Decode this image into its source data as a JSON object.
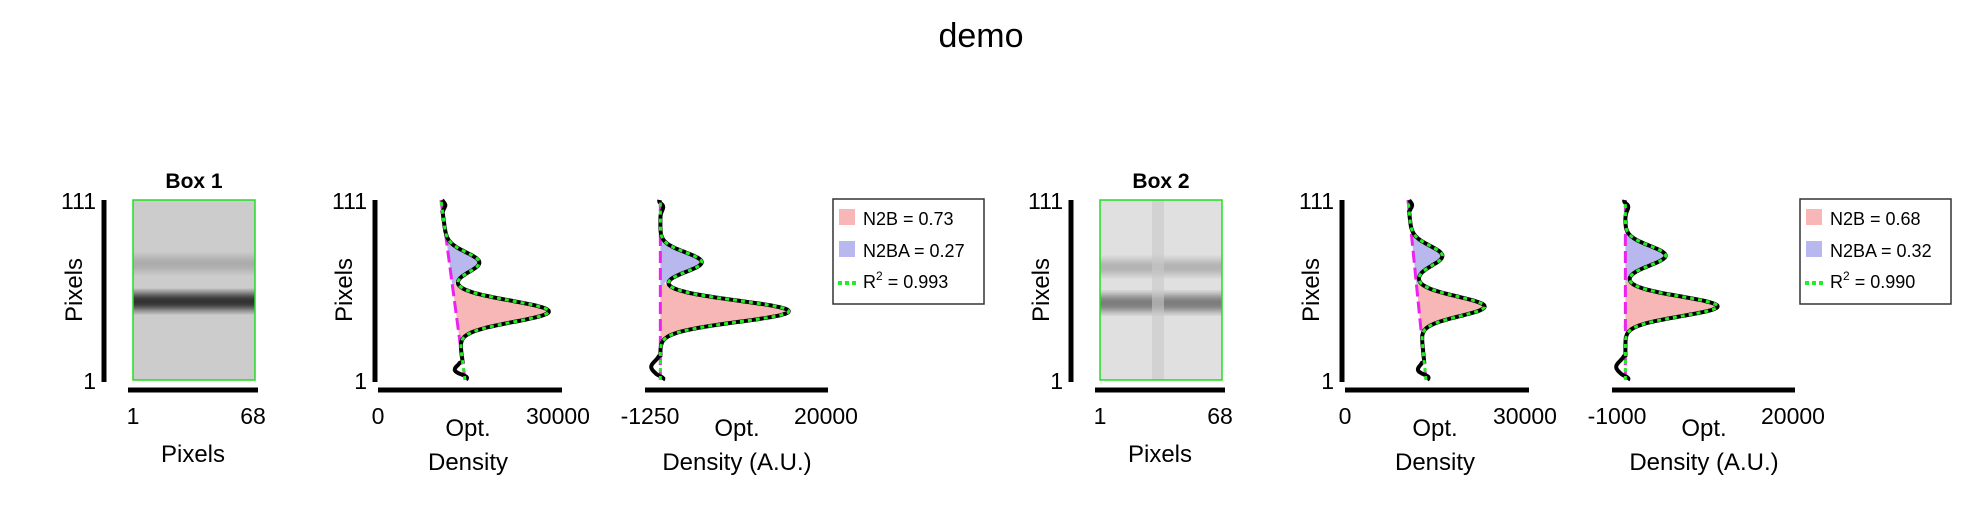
{
  "title": "demo",
  "colors": {
    "n2b_fill": "#f7b7b7",
    "n2ba_fill": "#b8b8ee",
    "fit": "#22ee22",
    "baseline": "#ee22ee",
    "profile": "#000000",
    "box_border": "#22dd22"
  },
  "panels": [
    {
      "box": {
        "title": "Box 1",
        "ylabel": "Pixels",
        "xlabel": "Pixels",
        "xtick_left": "1",
        "xtick_right": "68",
        "ytick_top": "111",
        "ytick_bottom": "1",
        "band_main_y": 49,
        "band_faint_y": 72,
        "background_gray": 0.8
      },
      "density": {
        "xlabel_line1": "Opt.",
        "xlabel_line2": "Density",
        "ylabel": "Pixels",
        "xtick_left": "0",
        "xtick_right": "30000",
        "ytick_top": "111",
        "ytick_bottom": "1"
      },
      "adjusted": {
        "xlabel_line1": "Opt.",
        "xlabel_line2": "Density (A.U.)",
        "xtick_left": "-1250",
        "xtick_right": "20000"
      },
      "legend": {
        "n2b": "N2B = 0.73",
        "n2ba": "N2BA = 0.27",
        "r2_prefix": "R",
        "r2_sup": "2",
        "r2_value": " = 0.993"
      }
    },
    {
      "box": {
        "title": "Box 2",
        "ylabel": "Pixels",
        "xlabel": "Pixels",
        "xtick_left": "1",
        "xtick_right": "68",
        "ytick_top": "111",
        "ytick_bottom": "1",
        "band_main_y": 48,
        "band_faint_y": 70,
        "background_gray": 0.88
      },
      "density": {
        "xlabel_line1": "Opt.",
        "xlabel_line2": "Density",
        "ylabel": "Pixels",
        "xtick_left": "0",
        "xtick_right": "30000",
        "ytick_top": "111",
        "ytick_bottom": "1"
      },
      "adjusted": {
        "xlabel_line1": "Opt.",
        "xlabel_line2": "Density (A.U.)",
        "xtick_left": "-1000",
        "xtick_right": "20000"
      },
      "legend": {
        "n2b": "N2B = 0.68",
        "n2ba": "N2BA = 0.32",
        "r2_prefix": "R",
        "r2_sup": "2",
        "r2_value": " = 0.990"
      }
    }
  ],
  "chart_data": [
    {
      "type": "line",
      "title": "Box 1",
      "xlabel": "Opt. Density",
      "ylabel": "Pixels",
      "xlim": [
        0,
        30000
      ],
      "ylim": [
        1,
        111
      ],
      "baseline": {
        "top_x": 10500,
        "bottom_x": 14500
      },
      "peaks": [
        {
          "name": "N2B",
          "y": 43,
          "amplitude": 15500,
          "width": 6.5
        },
        {
          "name": "N2BA",
          "y": 73,
          "amplitude": 5000,
          "width": 6.0
        }
      ],
      "fractions": {
        "N2B": 0.73,
        "N2BA": 0.27
      },
      "r2": 0.993
    },
    {
      "type": "line",
      "title": "Box 1",
      "xlabel": "Opt. Density (A.U.)",
      "ylabel": "Pixels",
      "xlim": [
        -1250,
        20000
      ],
      "ylim": [
        1,
        111
      ],
      "peaks": [
        {
          "name": "N2B",
          "y": 43,
          "amplitude": 15500,
          "width": 6.5
        },
        {
          "name": "N2BA",
          "y": 73,
          "amplitude": 5000,
          "width": 6.0
        }
      ]
    },
    {
      "type": "line",
      "title": "Box 2",
      "xlabel": "Opt. Density",
      "ylabel": "Pixels",
      "xlim": [
        0,
        30000
      ],
      "ylim": [
        1,
        111
      ],
      "baseline": {
        "top_x": 10500,
        "bottom_x": 13500
      },
      "peaks": [
        {
          "name": "N2B",
          "y": 46,
          "amplitude": 11000,
          "width": 6.0
        },
        {
          "name": "N2BA",
          "y": 77,
          "amplitude": 4800,
          "width": 6.0
        }
      ],
      "fractions": {
        "N2B": 0.68,
        "N2BA": 0.32
      },
      "r2": 0.99
    },
    {
      "type": "line",
      "title": "Box 2",
      "xlabel": "Opt. Density (A.U.)",
      "ylabel": "Pixels",
      "xlim": [
        -1000,
        20000
      ],
      "ylim": [
        1,
        111
      ],
      "peaks": [
        {
          "name": "N2B",
          "y": 46,
          "amplitude": 11000,
          "width": 6.0
        },
        {
          "name": "N2BA",
          "y": 77,
          "amplitude": 4800,
          "width": 6.0
        }
      ]
    }
  ]
}
